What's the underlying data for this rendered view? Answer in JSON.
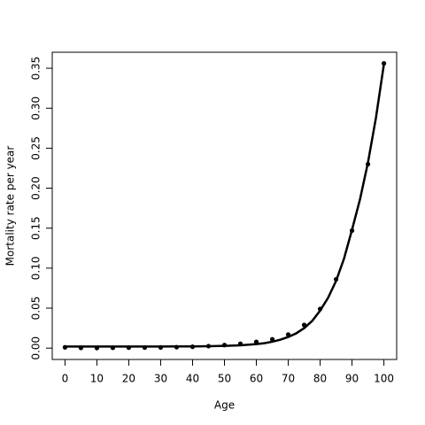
{
  "chart_data": {
    "type": "scatter",
    "x_label": "Age",
    "y_label": "Mortality rate per year",
    "xlim": [
      -4,
      104
    ],
    "ylim": [
      -0.0142,
      0.37
    ],
    "xticks": [
      0,
      10,
      20,
      30,
      40,
      50,
      60,
      70,
      80,
      90,
      100
    ],
    "yticks": [
      {
        "value": 0,
        "label": "0.00"
      },
      0.05,
      {
        "value": 0.1,
        "label": "0.10"
      },
      0.15,
      {
        "value": 0.2,
        "label": "0.20"
      },
      0.25,
      {
        "value": 0.3,
        "label": "0.30"
      },
      0.35
    ],
    "series": [
      {
        "kind": "points",
        "color": "#000000",
        "x": [
          0,
          5,
          10,
          15,
          20,
          25,
          30,
          35,
          40,
          45,
          50,
          55,
          60,
          65,
          70,
          75,
          80,
          85,
          90,
          95,
          100
        ],
        "values": [
          0.001,
          0.0003,
          0.0002,
          0.0004,
          0.0006,
          0.0007,
          0.0009,
          0.0012,
          0.0017,
          0.0025,
          0.0038,
          0.0055,
          0.0078,
          0.011,
          0.017,
          0.029,
          0.049,
          0.086,
          0.147,
          0.23,
          0.356
        ]
      },
      {
        "kind": "line",
        "color": "#000000",
        "x": [
          0,
          5,
          10,
          15,
          20,
          25,
          30,
          35,
          40,
          45,
          50,
          55,
          60,
          62.5,
          65,
          67.5,
          70,
          72.5,
          75,
          77.5,
          80,
          82.5,
          85,
          87.5,
          90,
          92.5,
          95,
          97.5,
          100
        ],
        "values": [
          0.002,
          0.002,
          0.002,
          0.002,
          0.002,
          0.002,
          0.002,
          0.0021,
          0.0022,
          0.0024,
          0.0028,
          0.0035,
          0.005,
          0.0062,
          0.008,
          0.0105,
          0.014,
          0.0185,
          0.025,
          0.034,
          0.047,
          0.063,
          0.084,
          0.112,
          0.148,
          0.186,
          0.232,
          0.288,
          0.355
        ]
      }
    ]
  }
}
